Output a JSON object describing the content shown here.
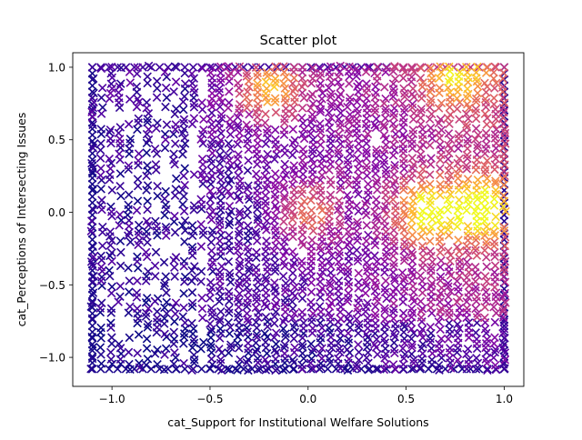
{
  "chart_data": {
    "type": "scatter",
    "title": "Scatter plot",
    "xlabel": "cat_Support for Institutional Welfare Solutions",
    "ylabel": "cat_Perceptions of Intersecting Issues",
    "xlim": [
      -1.2,
      1.1
    ],
    "ylim": [
      -1.2,
      1.1
    ],
    "x_ticks": [
      -1.0,
      -0.5,
      0.0,
      0.5,
      1.0
    ],
    "y_ticks": [
      -1.0,
      -0.5,
      0.0,
      0.5,
      1.0
    ],
    "x_tick_labels": [
      "−1.0",
      "−0.5",
      "0.0",
      "0.5",
      "1.0"
    ],
    "y_tick_labels": [
      "−1.0",
      "−0.5",
      "0.0",
      "0.5",
      "1.0"
    ],
    "marker": "x",
    "colormap": "plasma",
    "colors": {
      "low": "#0d0887",
      "mid_low": "#5c01a6",
      "mid": "#9c179e",
      "mid_high": "#cc4778",
      "high": "#ed7953",
      "top": "#fdb42f",
      "max": "#f0f921"
    },
    "grid": false,
    "legend": "none",
    "x_range_points": [
      -1.1,
      1.0
    ],
    "y_range_points": [
      -1.08,
      1.0
    ],
    "hotspots": [
      {
        "x": 0.6,
        "y": 0.0,
        "level": 0.95
      },
      {
        "x": 0.88,
        "y": 0.02,
        "level": 1.0
      },
      {
        "x": -0.2,
        "y": 0.85,
        "level": 0.85
      },
      {
        "x": 0.0,
        "y": 0.0,
        "level": 0.6
      },
      {
        "x": 0.75,
        "y": 0.95,
        "level": 0.7
      }
    ]
  }
}
